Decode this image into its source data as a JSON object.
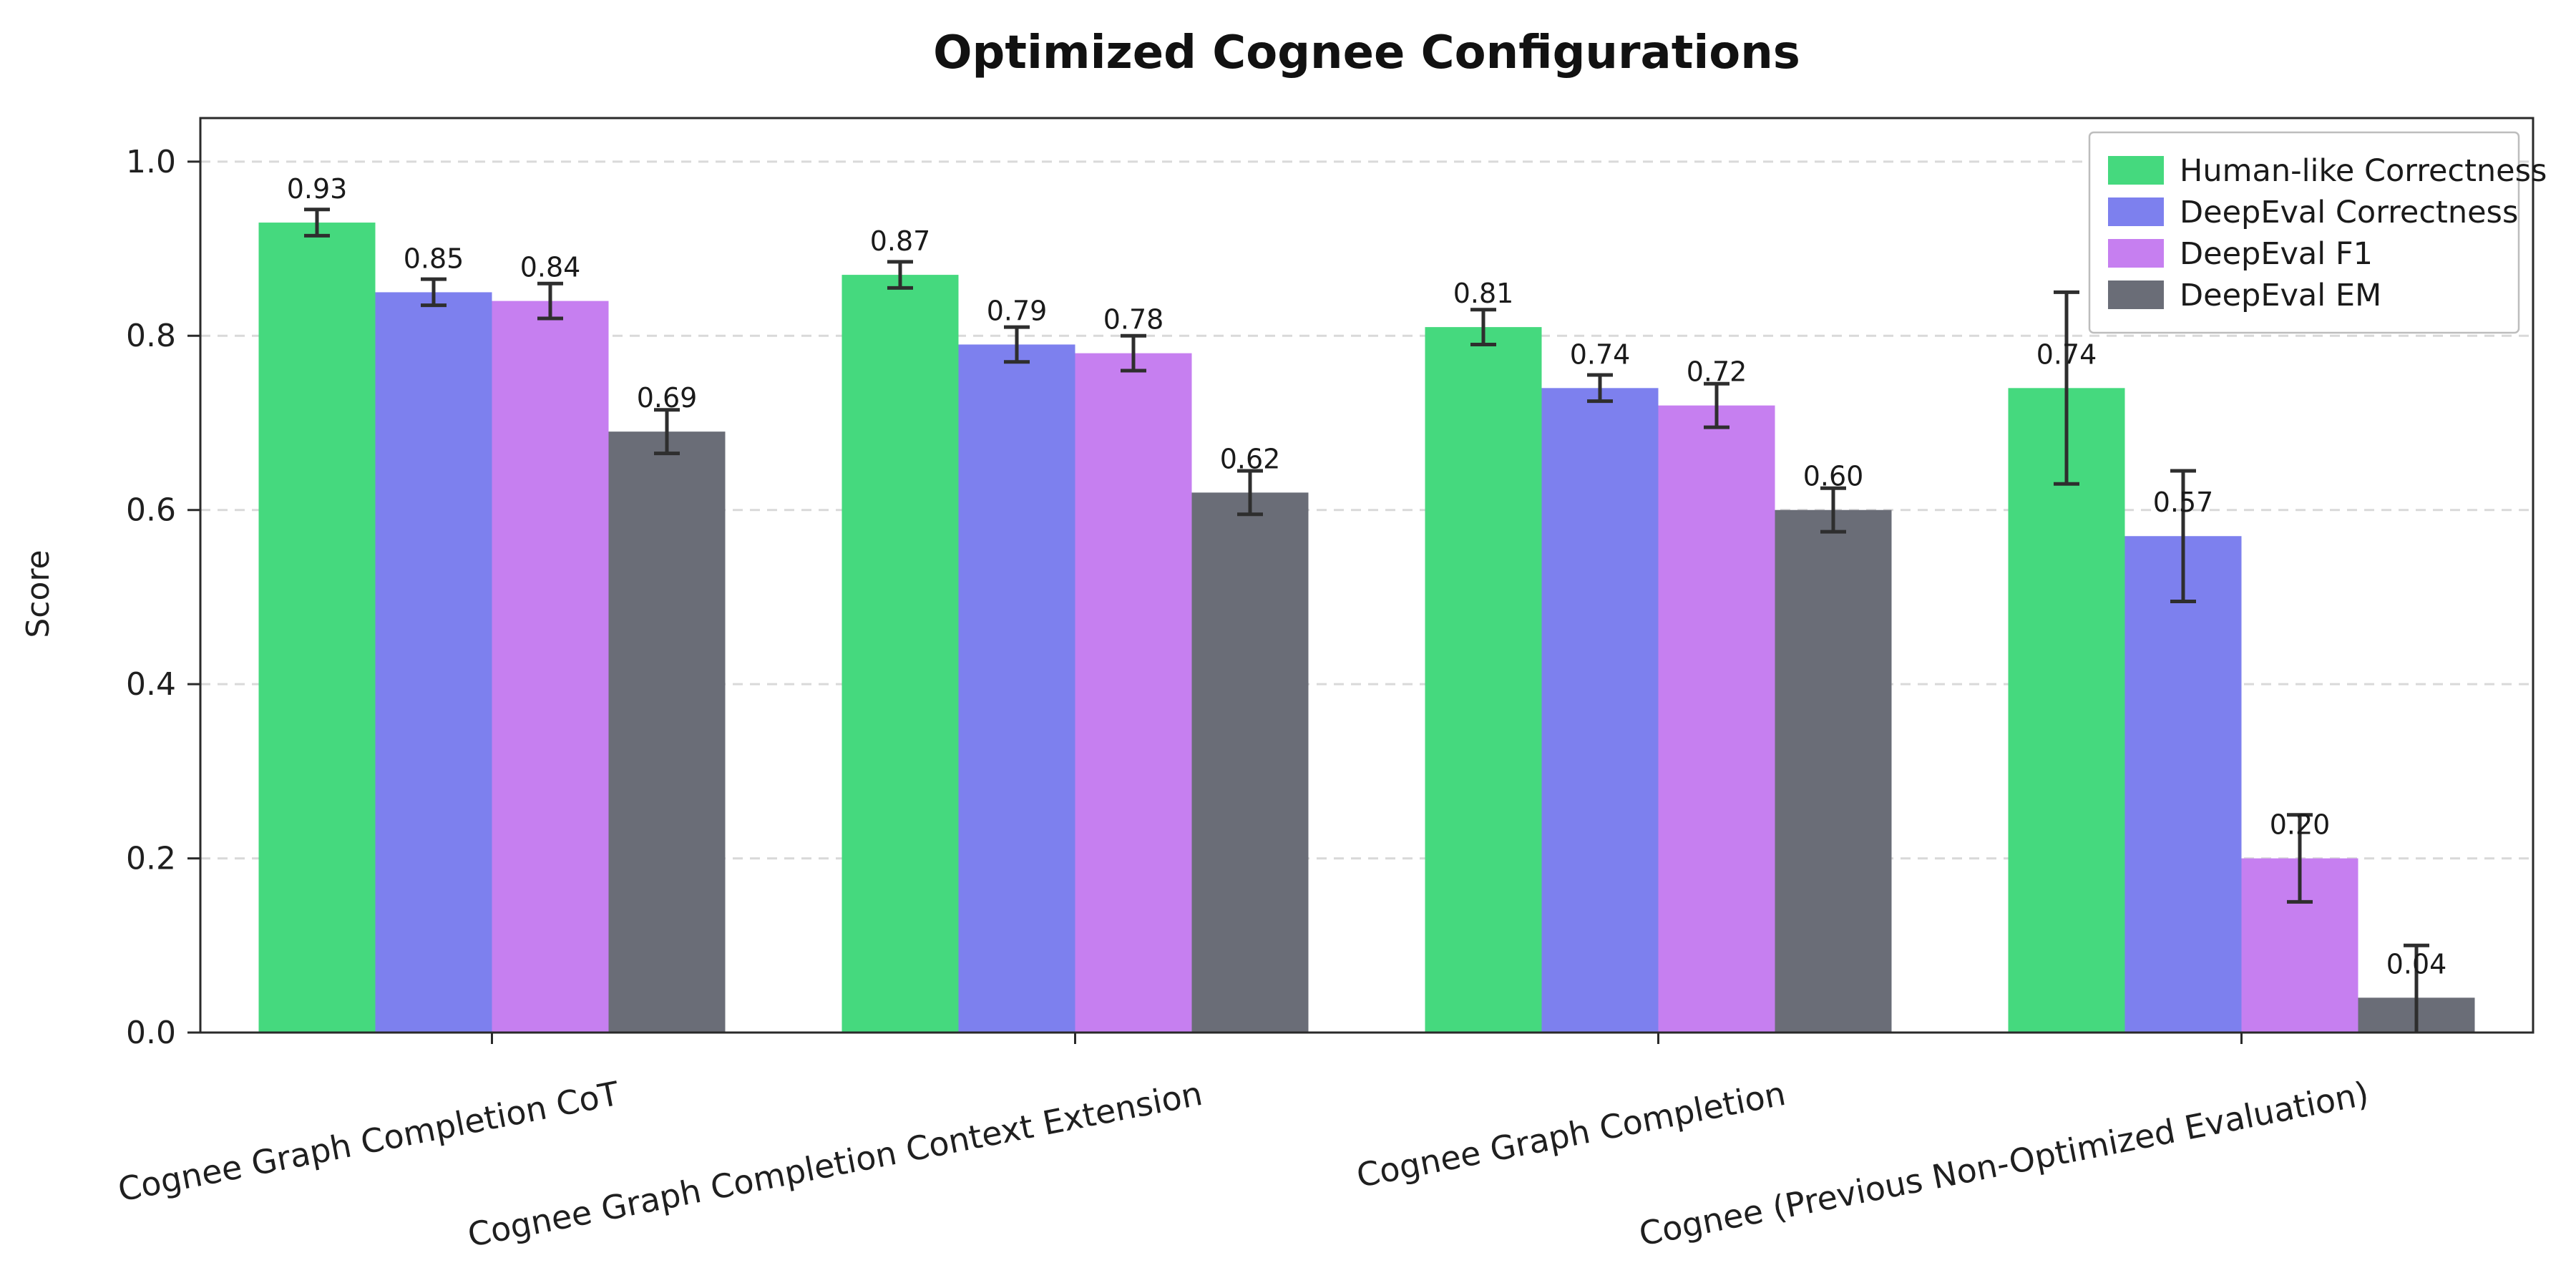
{
  "chart_data": {
    "type": "bar",
    "title": "Optimized Cognee Configurations",
    "xlabel": "",
    "ylabel": "Score",
    "ylim": [
      0,
      1.05
    ],
    "yticks": [
      "0.0",
      "0.2",
      "0.4",
      "0.6",
      "0.8",
      "1.0"
    ],
    "grid": {
      "axis": "y",
      "style": "dashed",
      "color": "#d9d9d9"
    },
    "legend": {
      "position": "upper right"
    },
    "categories": [
      "Cognee Graph Completion CoT",
      "Cognee Graph Completion Context Extension",
      "Cognee Graph Completion",
      "Cognee (Previous Non-Optimized Evaluation)"
    ],
    "series": [
      {
        "name": "Human-like Correctness",
        "color": "#45d97e",
        "values": [
          0.93,
          0.87,
          0.81,
          0.74
        ],
        "errors": [
          0.015,
          0.015,
          0.02,
          0.11
        ]
      },
      {
        "name": "DeepEval Correctness",
        "color": "#7d80ee",
        "values": [
          0.85,
          0.79,
          0.74,
          0.57
        ],
        "errors": [
          0.015,
          0.02,
          0.015,
          0.075
        ]
      },
      {
        "name": "DeepEval F1",
        "color": "#c67ff0",
        "values": [
          0.84,
          0.78,
          0.72,
          0.2
        ],
        "errors": [
          0.02,
          0.02,
          0.025,
          0.05
        ]
      },
      {
        "name": "DeepEval EM",
        "color": "#6a6d77",
        "values": [
          0.69,
          0.62,
          0.6,
          0.04
        ],
        "errors": [
          0.025,
          0.025,
          0.025,
          0.06
        ]
      }
    ]
  }
}
